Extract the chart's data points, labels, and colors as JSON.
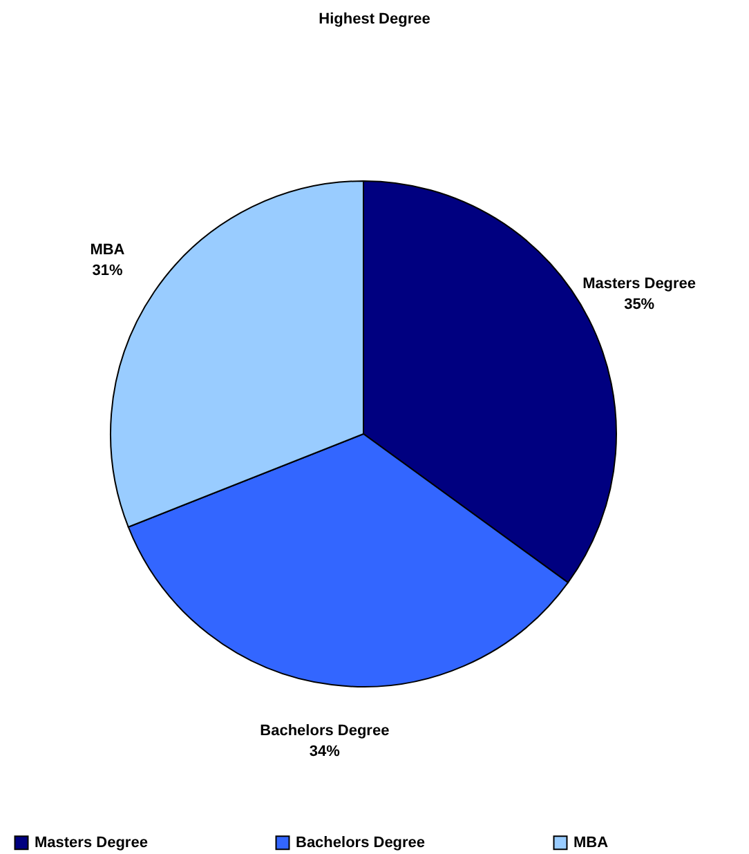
{
  "chart_data": {
    "type": "pie",
    "title": "Highest Degree",
    "categories": [
      "Masters Degree",
      "Bachelors Degree",
      "MBA"
    ],
    "values": [
      35,
      34,
      31
    ],
    "colors": [
      "#000080",
      "#3366ff",
      "#99ccff"
    ],
    "value_labels": [
      "35%",
      "34%",
      "31%"
    ],
    "legend": "bottom"
  }
}
